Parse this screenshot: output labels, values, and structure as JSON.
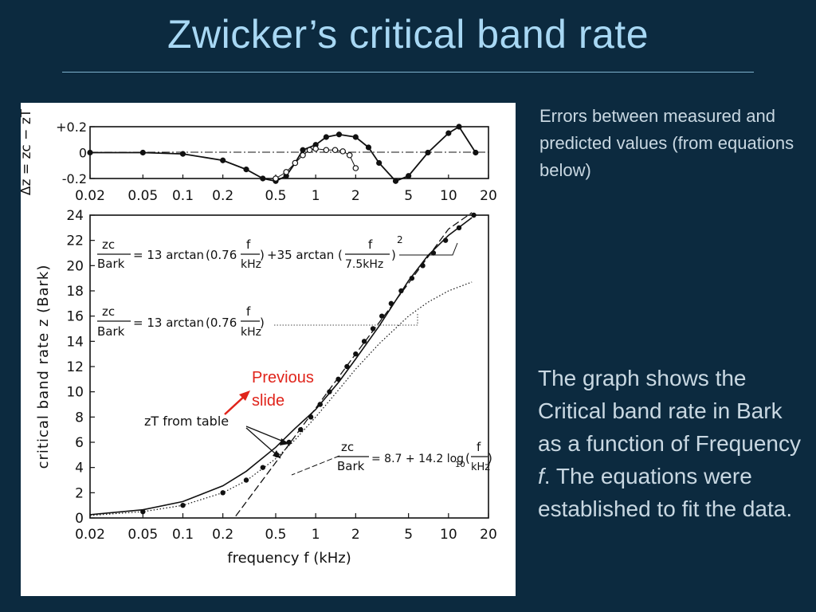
{
  "slide": {
    "title": "Zwicker’s critical band rate",
    "note": "Errors between measured and predicted values (from equations below)",
    "description": {
      "before_italic": "The graph shows the Critical band rate in Bark as a function of Frequency ",
      "italic": "f",
      "after_italic": ". The equations were established to fit the data."
    },
    "annotation": [
      "Previous",
      "slide"
    ],
    "colors": {
      "background": "#0c2a3f",
      "title": "#a8d8f4",
      "body_text": "#c9d8e2",
      "annotation": "#e0241b"
    }
  },
  "chart_data": [
    {
      "type": "line",
      "panel": "error",
      "ylabel": "Δz = zc − zT",
      "y_ticks": [
        "+0.2",
        "0",
        "-0.2"
      ],
      "ylim": [
        -0.2,
        0.2
      ],
      "x_scale": "log",
      "x_ticks": [
        "0.02",
        "0.05",
        "0.1",
        "0.2",
        "0.5",
        "1",
        "2",
        "5",
        "10",
        "20"
      ],
      "xlim": [
        0.02,
        20
      ],
      "series": [
        {
          "marker": "filled",
          "x": [
            0.02,
            0.05,
            0.1,
            0.2,
            0.3,
            0.4,
            0.5,
            0.6,
            0.7,
            0.8,
            1,
            1.2,
            1.5,
            2,
            2.5,
            3,
            4,
            5,
            7,
            10,
            12,
            16
          ],
          "y": [
            0,
            0,
            -0.01,
            -0.06,
            -0.13,
            -0.2,
            -0.22,
            -0.18,
            -0.08,
            0.02,
            0.06,
            0.12,
            0.14,
            0.12,
            0.04,
            -0.08,
            -0.22,
            -0.18,
            0,
            0.15,
            0.2,
            0
          ]
        },
        {
          "marker": "open",
          "x": [
            0.5,
            0.6,
            0.7,
            0.8,
            0.9,
            1,
            1.2,
            1.4,
            1.6,
            1.8,
            2
          ],
          "y": [
            -0.2,
            -0.15,
            -0.08,
            -0.02,
            0.02,
            0.03,
            0.02,
            0.02,
            0.01,
            -0.02,
            -0.12
          ]
        }
      ]
    },
    {
      "type": "line",
      "panel": "main",
      "xlabel": "frequency f (kHz)",
      "ylabel": "critical band rate z (Bark)",
      "x_scale": "log",
      "x_ticks": [
        "0.02",
        "0.05",
        "0.1",
        "0.2",
        "0.5",
        "1",
        "2",
        "5",
        "10",
        "20"
      ],
      "xlim": [
        0.02,
        20
      ],
      "y_ticks": [
        "0",
        "2",
        "4",
        "6",
        "8",
        "10",
        "12",
        "14",
        "16",
        "18",
        "20",
        "22",
        "24"
      ],
      "ylim": [
        0,
        24
      ],
      "series": [
        {
          "name": "zT from table",
          "style": "dots",
          "x": [
            0.05,
            0.1,
            0.2,
            0.3,
            0.4,
            0.51,
            0.63,
            0.77,
            0.92,
            1.08,
            1.27,
            1.48,
            1.72,
            2.0,
            2.32,
            2.7,
            3.15,
            3.7,
            4.4,
            5.3,
            6.4,
            7.7,
            9.5,
            12.0,
            15.5
          ],
          "y": [
            0.5,
            1,
            2,
            3,
            4,
            5,
            6,
            7,
            8,
            9,
            10,
            11,
            12,
            13,
            14,
            15,
            16,
            17,
            18,
            19,
            20,
            21,
            22,
            23,
            24
          ]
        },
        {
          "style": "solid",
          "x": [
            0.02,
            0.05,
            0.1,
            0.2,
            0.3,
            0.5,
            0.7,
            1,
            1.5,
            2,
            3,
            5,
            7,
            10,
            15
          ],
          "y": [
            0.26,
            0.65,
            1.3,
            2.55,
            3.7,
            5.6,
            7.1,
            8.6,
            10.8,
            12.6,
            15.2,
            18.8,
            20.8,
            22.4,
            23.8
          ]
        },
        {
          "style": "dotted",
          "x": [
            0.02,
            0.05,
            0.1,
            0.2,
            0.3,
            0.5,
            0.7,
            1,
            1.5,
            2,
            3,
            5,
            7,
            10,
            15
          ],
          "y": [
            0.2,
            0.5,
            1.0,
            2.0,
            2.95,
            4.7,
            6.2,
            8.0,
            10.2,
            11.8,
            13.8,
            16.0,
            17.1,
            18.0,
            18.7
          ]
        },
        {
          "style": "dashed",
          "x": [
            0.25,
            0.5,
            1,
            2,
            5,
            10,
            15
          ],
          "y": [
            0.15,
            4.4,
            8.7,
            13.0,
            18.6,
            22.9,
            25.4
          ]
        }
      ],
      "annotations": [
        {
          "text": "zT from table"
        },
        {
          "parts": [
            "zc",
            "Bark",
            "= 13 arctan",
            "(0.76",
            "f",
            "kHz",
            ")",
            "+35 arctan",
            "(",
            "f",
            "7.5kHz",
            ")",
            "2"
          ]
        },
        {
          "parts": [
            "zc",
            "Bark",
            "= 13 arctan",
            "(0.76",
            "f",
            "kHz",
            ")"
          ]
        },
        {
          "parts": [
            "zc",
            "Bark",
            "= 8.7 + 14.2 log",
            "10",
            "(",
            "f",
            "kHz",
            ")"
          ]
        }
      ]
    }
  ]
}
